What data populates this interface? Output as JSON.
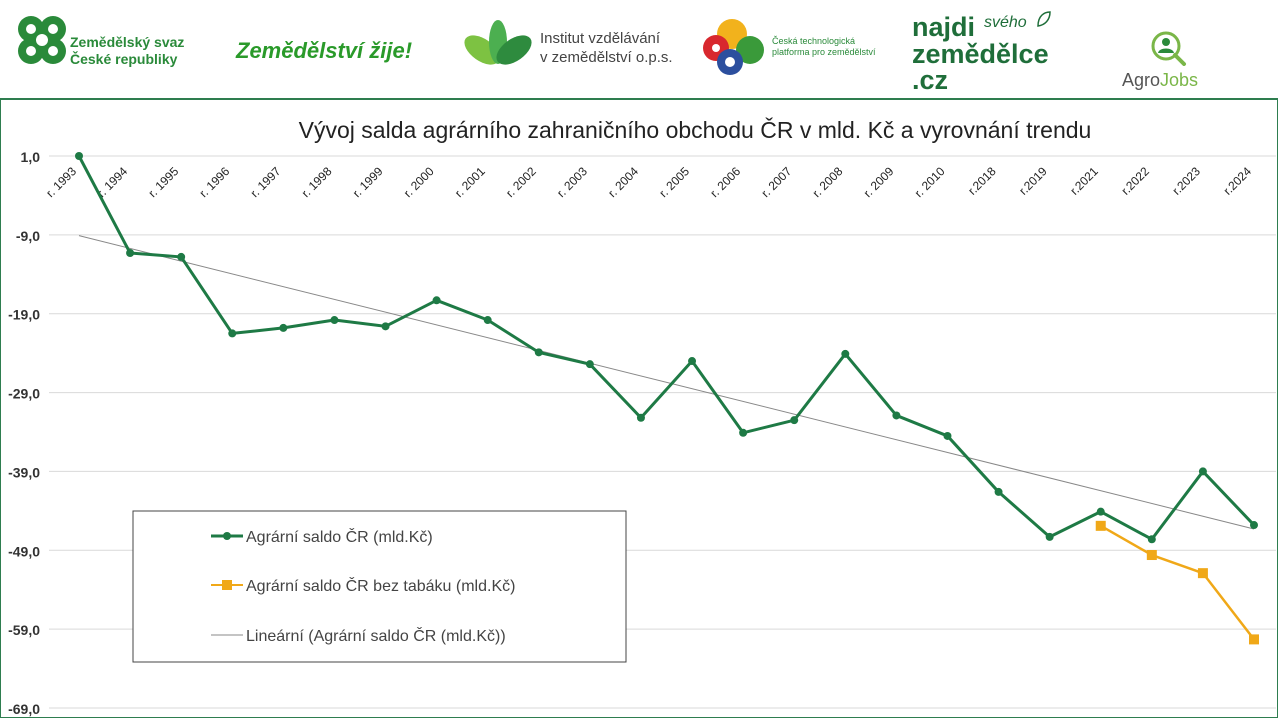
{
  "logos": {
    "zscr_line1": "Zemědělský svaz",
    "zscr_line2": "České republiky",
    "zemedelstvi_zije": "Zemědělství žije!",
    "ivz_line1": "Institut vzdělávání",
    "ivz_line2": "v zemědělství o.p.s.",
    "ctp_line1": "Česká technologická",
    "ctp_line2": "platforma pro zemědělství",
    "najdi_line1": "najdi",
    "najdi_svoho": "svého",
    "najdi_line2": "zemědělce",
    "najdi_line3": ".cz",
    "agro": "Agro",
    "jobs": "Jobs"
  },
  "colors": {
    "green": "#1e7a45",
    "orange": "#f0a818",
    "trend": "#888888",
    "brand_green": "#2a8a3a"
  },
  "chart_data": {
    "type": "line",
    "title": "Vývoj salda agrárního zahraničního obchodu ČR v mld. Kč a vyrovnání trendu",
    "categories": [
      "r. 1993",
      "r. 1994",
      "r. 1995",
      "r. 1996",
      "r. 1997",
      "r. 1998",
      "r. 1999",
      "r. 2000",
      "r. 2001",
      "r. 2002",
      "r. 2003",
      "r. 2004",
      "r. 2005",
      "r. 2006",
      "r. 2007",
      "r. 2008",
      "r. 2009",
      "r. 2010",
      "r.2018",
      "r.2019",
      "r.2021",
      "r.2022",
      "r.2023",
      "r.2024"
    ],
    "yticks": [
      "1,0",
      "-9,0",
      "-19,0",
      "-29,0",
      "-39,0",
      "-49,0",
      "-59,0",
      "-69,0"
    ],
    "ylim": [
      -69,
      1
    ],
    "grid": true,
    "legend_position": "lower-left",
    "series": [
      {
        "name": "Agrární saldo ČR (mld.Kč)",
        "color": "#1e7a45",
        "marker": "circle",
        "values": [
          1.0,
          -11.3,
          -11.8,
          -21.5,
          -20.8,
          -19.8,
          -20.6,
          -17.3,
          -19.8,
          -23.9,
          -25.4,
          -32.2,
          -25.0,
          -34.1,
          -32.5,
          -24.1,
          -31.9,
          -34.5,
          -41.6,
          -47.3,
          -44.1,
          -47.6,
          -39.0,
          -45.8
        ]
      },
      {
        "name": "Agrární saldo ČR bez tabáku (mld.Kč)",
        "color": "#f0a818",
        "marker": "square",
        "values": [
          null,
          null,
          null,
          null,
          null,
          null,
          null,
          null,
          null,
          null,
          null,
          null,
          null,
          null,
          null,
          null,
          null,
          null,
          null,
          null,
          -45.9,
          -49.6,
          -51.9,
          -60.3
        ]
      },
      {
        "name": "Lineární (Agrární saldo ČR (mld.Kč))",
        "color": "#888888",
        "marker": "none",
        "trend": {
          "start": -9.1,
          "end": -46.3
        }
      }
    ]
  }
}
